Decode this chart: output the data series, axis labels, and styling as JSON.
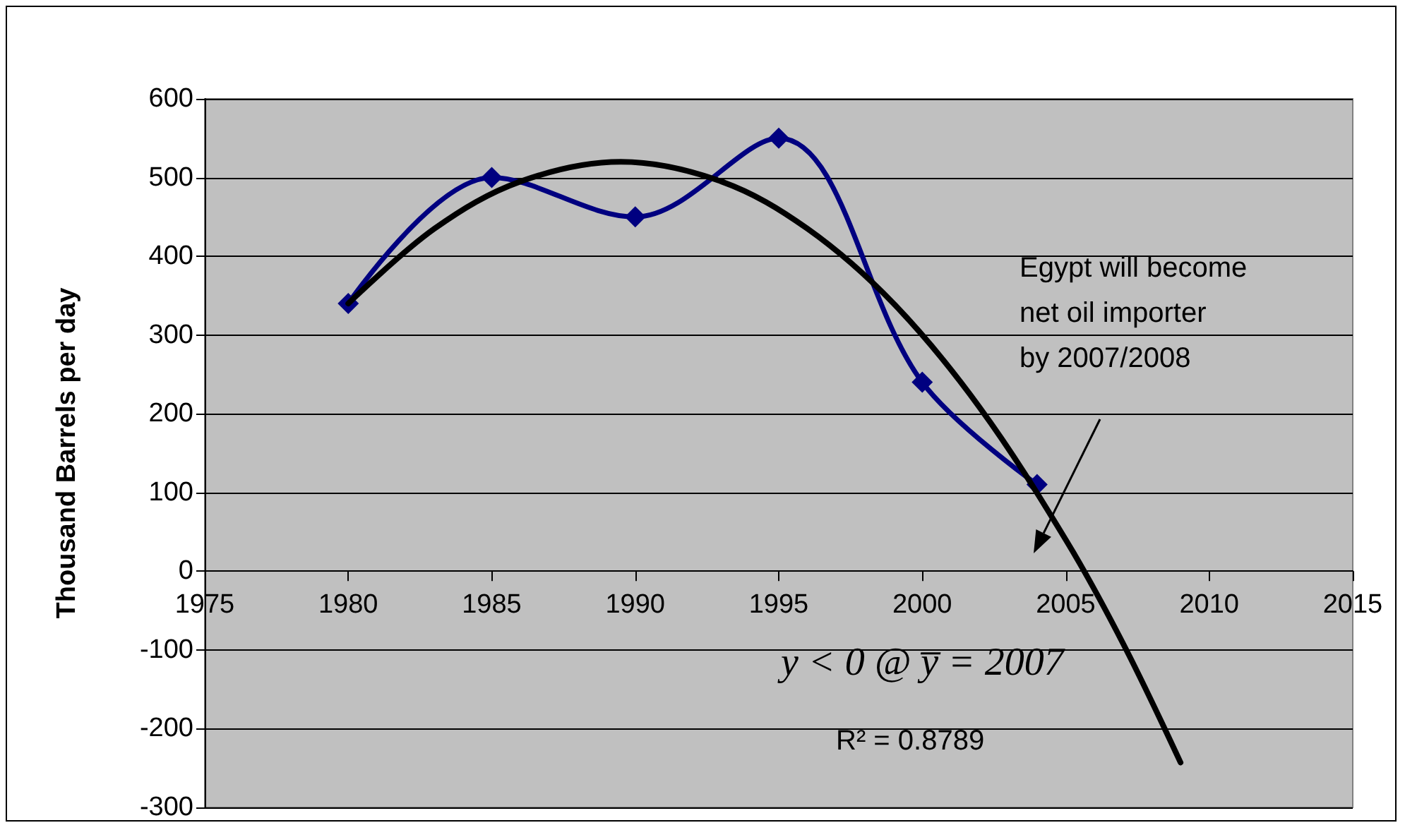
{
  "chart_data": {
    "type": "line",
    "ylabel": "Thousand Barrels per day",
    "xlim": [
      1975,
      2015
    ],
    "xticks": [
      1975,
      1980,
      1985,
      1990,
      1995,
      2000,
      2005,
      2010,
      2015
    ],
    "ylim": [
      -300,
      600
    ],
    "yticks": [
      -300,
      -200,
      -100,
      0,
      100,
      200,
      300,
      400,
      500,
      600
    ],
    "grid": "y",
    "marker": "diamond",
    "line_style": "solid",
    "series": [
      {
        "color": "#000080",
        "x": [
          1980,
          1985,
          1990,
          1995,
          2000,
          2004
        ],
        "values": [
          340,
          500,
          450,
          550,
          240,
          110
        ]
      },
      {
        "color": "#000000",
        "marker": "none",
        "x": [
          1980,
          1983,
          1986,
          1989.5,
          1993,
          1996,
          1999,
          2002,
          2005,
          2007,
          2009
        ],
        "values": [
          340,
          435,
          495,
          520,
          495,
          435,
          340,
          208,
          40,
          -92,
          -243
        ]
      }
    ],
    "annotations": [
      "Egypt will become\nnet oil importer\nby 2007/2008",
      "y < 0 @ y̅ = 2007",
      "R² = 0.8789"
    ]
  }
}
